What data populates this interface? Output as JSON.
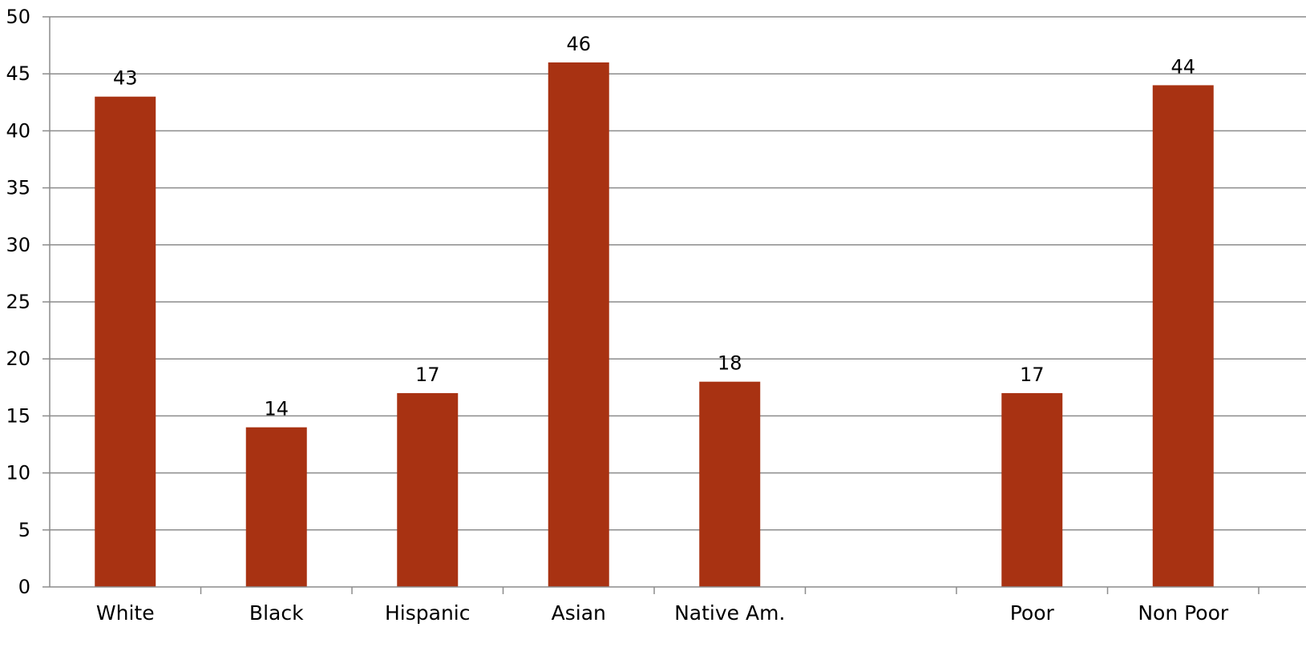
{
  "chart_data": {
    "type": "bar",
    "title": "",
    "xlabel": "",
    "ylabel": "",
    "categories": [
      "White",
      "Black",
      "Hispanic",
      "Asian",
      "Native Am.",
      "",
      "Poor",
      "Non Poor"
    ],
    "values": [
      43,
      14,
      17,
      46,
      18,
      null,
      17,
      44
    ],
    "ylim": [
      0,
      50
    ],
    "yticks": [
      0,
      5,
      10,
      15,
      20,
      25,
      30,
      35,
      40,
      45,
      50
    ],
    "yticks_labels": [
      "0",
      "5",
      "10",
      "15",
      "20",
      "25",
      "30",
      "35",
      "40",
      "45",
      "50"
    ],
    "data_labels": [
      "43",
      "14",
      "17",
      "46",
      "18",
      "",
      "17",
      "44"
    ],
    "grid": true,
    "legend": "none",
    "bar_color": "#A83212",
    "grid_color": "#8C8C8C",
    "axis_color": "#8C8C8C"
  }
}
